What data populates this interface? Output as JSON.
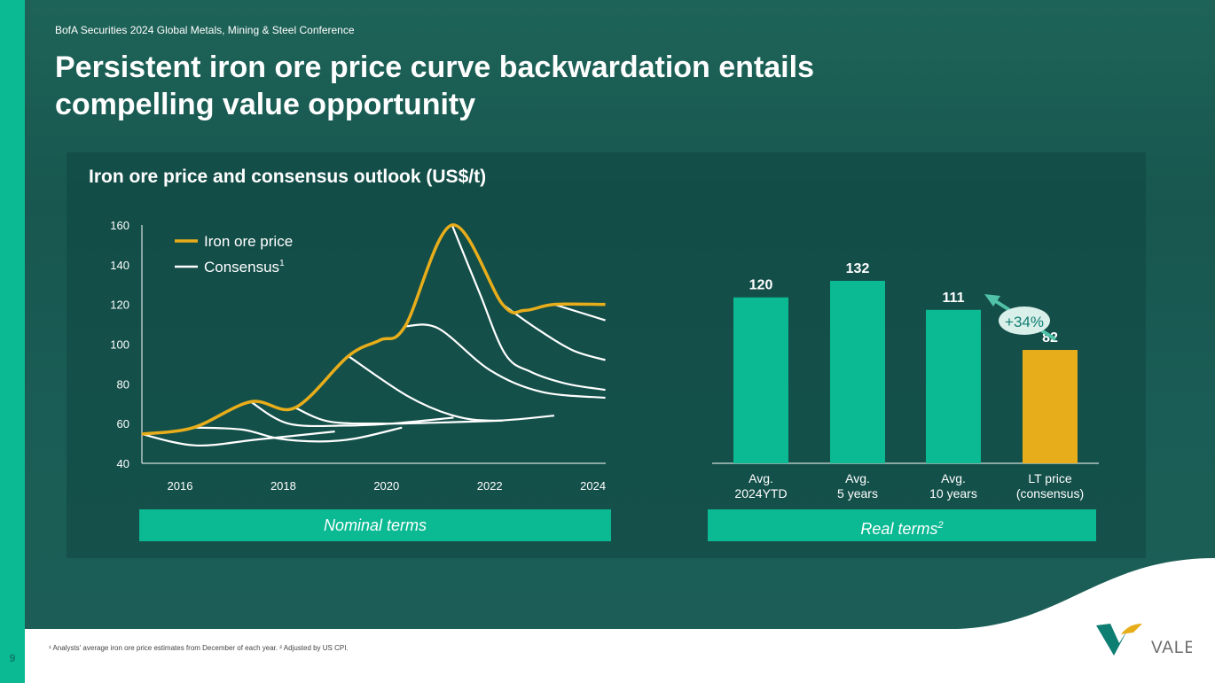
{
  "header": {
    "conference": "BofA Securities 2024 Global Metals, Mining & Steel Conference",
    "title_line1": "Persistent iron ore price curve backwardation entails",
    "title_line2": "compelling value opportunity",
    "subtitle": "Iron ore price and consensus outlook (US$/t)"
  },
  "colors": {
    "accent": "#0bb993",
    "gold": "#e8ad1a",
    "bg": "#1a5d56"
  },
  "chart_data": [
    {
      "type": "line",
      "title": "Iron ore price and consensus outlook (US$/t)",
      "ylim": [
        40,
        160
      ],
      "yticks": [
        "40",
        "60",
        "80",
        "100",
        "120",
        "140",
        "160"
      ],
      "xticks": [
        "2016",
        "2018",
        "2020",
        "2022",
        "2024"
      ],
      "xlim": [
        2015.25,
        2024.25
      ],
      "legend": {
        "placement": "top-left",
        "price_label": "Iron ore price",
        "consensus_label": "Consensus",
        "consensus_sup": "1"
      },
      "price": [
        [
          2015.26,
          54.7
        ],
        [
          2016.26,
          58
        ],
        [
          2017.37,
          71
        ],
        [
          2018.23,
          68
        ],
        [
          2019.26,
          94
        ],
        [
          2019.87,
          102
        ],
        [
          2020.36,
          109
        ],
        [
          2021.27,
          160
        ],
        [
          2022.25,
          120
        ],
        [
          2022.68,
          117
        ],
        [
          2023.25,
          120
        ],
        [
          2024.24,
          120
        ]
      ],
      "consensus": [
        [
          [
            2015.26,
            54.7
          ],
          [
            2016.3,
            49
          ],
          [
            2017.5,
            52
          ],
          [
            2019.0,
            56
          ]
        ],
        [
          [
            2016.26,
            58
          ],
          [
            2017.2,
            57
          ],
          [
            2017.9,
            52.5
          ],
          [
            2018.7,
            51
          ],
          [
            2019.4,
            52.5
          ],
          [
            2020.3,
            58
          ]
        ],
        [
          [
            2017.37,
            71
          ],
          [
            2018.1,
            60
          ],
          [
            2019.2,
            59
          ],
          [
            2020.1,
            60
          ],
          [
            2021.3,
            63
          ]
        ],
        [
          [
            2018.23,
            68
          ],
          [
            2018.9,
            61
          ],
          [
            2020.0,
            60
          ],
          [
            2021.0,
            60.5
          ],
          [
            2022.25,
            61.5
          ]
        ],
        [
          [
            2019.26,
            94
          ],
          [
            2020.4,
            74
          ],
          [
            2021.3,
            64
          ],
          [
            2022.1,
            61.5
          ],
          [
            2023.25,
            64
          ]
        ],
        [
          [
            2020.36,
            109
          ],
          [
            2021.0,
            108
          ],
          [
            2022.0,
            87
          ],
          [
            2023.0,
            76
          ],
          [
            2024.24,
            73
          ]
        ],
        [
          [
            2021.27,
            160
          ],
          [
            2021.8,
            126
          ],
          [
            2022.3,
            95
          ],
          [
            2022.8,
            86
          ],
          [
            2023.5,
            80
          ],
          [
            2024.24,
            77
          ]
        ],
        [
          [
            2022.25,
            120
          ],
          [
            2022.9,
            108
          ],
          [
            2023.6,
            97
          ],
          [
            2024.24,
            92
          ]
        ],
        [
          [
            2023.25,
            120
          ],
          [
            2024.24,
            112
          ]
        ]
      ],
      "footer_tag": "Nominal terms"
    },
    {
      "type": "bar",
      "categories": [
        "Avg.\n2024YTD",
        "Avg.\n5 years",
        "Avg.\n10 years",
        "LT price\n(consensus)"
      ],
      "values": [
        120,
        132,
        111,
        82
      ],
      "labels": [
        "120",
        "132",
        "111",
        "82"
      ],
      "annotation": "+34%",
      "footer_tag": "Real terms",
      "footer_sup": "2"
    }
  ],
  "footer": {
    "footnote": "¹ Analysts' average iron ore price estimates from December of each year.    ² Adjusted by US CPI.",
    "page_number": "9",
    "logo_text": "VALE"
  }
}
